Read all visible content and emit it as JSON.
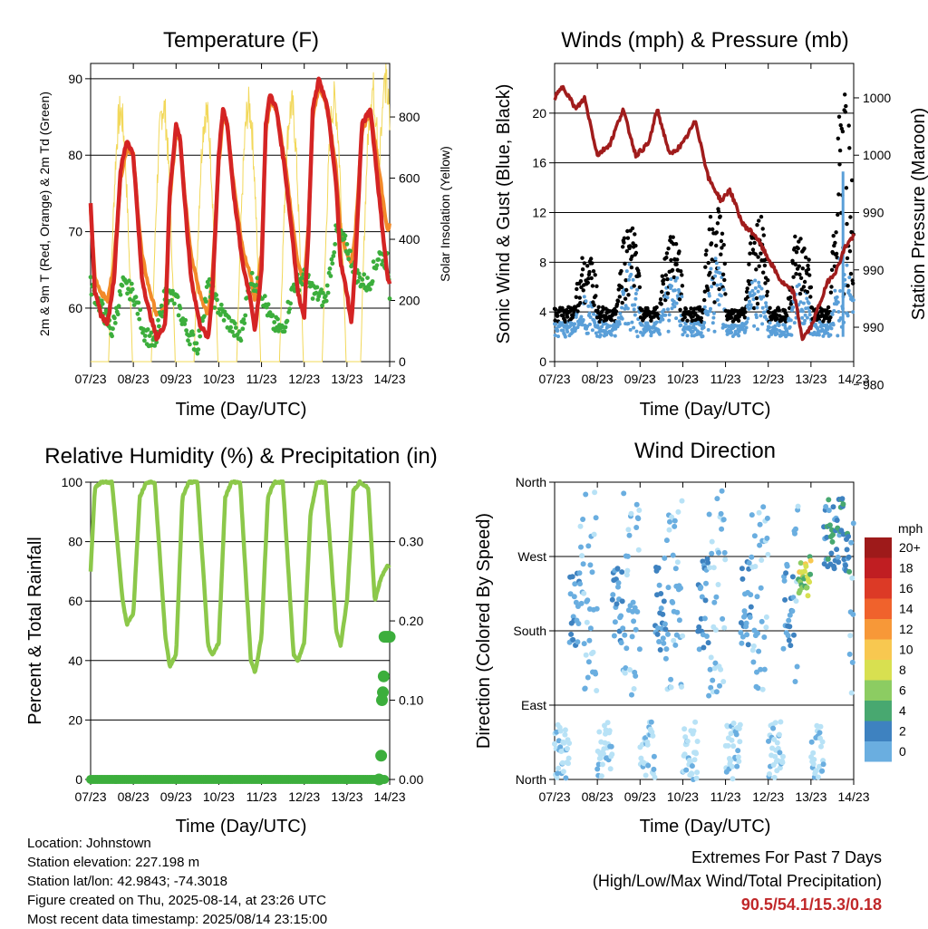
{
  "colors": {
    "temp2m": "#d42424",
    "temp9m": "#f28a2a",
    "dew": "#3cae3c",
    "solar": "#f2d85a",
    "wind": "#5a9fd8",
    "gust": "#000000",
    "pressure": "#a01c1c",
    "rh": "#8cc84a",
    "precip": "#3cae3c"
  },
  "x_ticks": [
    "07/23",
    "08/23",
    "09/23",
    "10/23",
    "11/23",
    "12/23",
    "13/23",
    "14/23"
  ],
  "chart_data": [
    {
      "type": "line",
      "title": "Temperature (F)",
      "xlabel": "Time (Day/UTC)",
      "ylabel": "2m & 9m T (Red, Orange) & 2m Td (Green)",
      "y2label": "Solar Insolation (Yellow)",
      "ylim": [
        53,
        92
      ],
      "y2lim": [
        0,
        975
      ],
      "y_ticks": [
        "60",
        "70",
        "80",
        "90"
      ],
      "y2_ticks": [
        "0",
        "200",
        "400",
        "600",
        "800"
      ],
      "grid": true,
      "series": [
        {
          "name": "2m T",
          "axis": "left",
          "x_days": [
            0,
            0.1,
            0.25,
            0.4,
            0.55,
            0.7,
            0.85,
            1.0,
            1.1,
            1.2,
            1.35,
            1.55,
            1.75,
            1.85,
            2.0,
            2.1,
            2.2,
            2.35,
            2.55,
            2.75,
            2.85,
            3.0,
            3.1,
            3.2,
            3.35,
            3.55,
            3.75,
            3.85,
            4.0,
            4.1,
            4.2,
            4.35,
            4.55,
            4.75,
            4.85,
            5.0,
            5.1,
            5.2,
            5.35,
            5.55,
            5.75,
            5.85,
            6.0,
            6.1,
            6.2,
            6.35,
            6.55,
            6.8,
            6.95,
            7.0
          ],
          "y": [
            74,
            62,
            59,
            58,
            64,
            78,
            82,
            80,
            72,
            64,
            60,
            56,
            58,
            75,
            84,
            82,
            74,
            64,
            58,
            56,
            62,
            80,
            86,
            84,
            75,
            66,
            61,
            57,
            65,
            84,
            88,
            86,
            78,
            68,
            62,
            59,
            70,
            86,
            90,
            86,
            76,
            66,
            62,
            58,
            66,
            84,
            86,
            72,
            64,
            63
          ]
        },
        {
          "name": "9m T",
          "axis": "left",
          "x_days": [
            0,
            0.1,
            0.25,
            0.4,
            0.55,
            0.7,
            0.85,
            1.0,
            1.1,
            1.2,
            1.35,
            1.55,
            1.75,
            1.85,
            2.0,
            2.1,
            2.2,
            2.35,
            2.55,
            2.75,
            2.85,
            3.0,
            3.1,
            3.2,
            3.35,
            3.55,
            3.75,
            3.85,
            4.0,
            4.1,
            4.2,
            4.35,
            4.55,
            4.75,
            4.85,
            5.0,
            5.1,
            5.2,
            5.35,
            5.55,
            5.75,
            5.85,
            6.0,
            6.1,
            6.2,
            6.35,
            6.55,
            6.8,
            6.95,
            7.0
          ],
          "y": [
            73,
            64,
            62,
            61,
            66,
            77,
            81,
            80,
            73,
            67,
            63,
            59,
            60,
            74,
            83,
            82,
            75,
            67,
            62,
            59,
            64,
            79,
            85,
            84,
            76,
            68,
            64,
            61,
            67,
            83,
            87,
            86,
            79,
            70,
            66,
            63,
            71,
            85,
            89,
            86,
            78,
            70,
            67,
            66,
            70,
            83,
            86,
            76,
            70,
            71
          ]
        },
        {
          "name": "2m Td",
          "axis": "left",
          "x_days": [
            0,
            0.25,
            0.5,
            0.75,
            1.0,
            1.25,
            1.5,
            1.75,
            2.0,
            2.25,
            2.5,
            2.75,
            3.0,
            3.25,
            3.5,
            3.75,
            4.0,
            4.25,
            4.5,
            4.75,
            5.0,
            5.25,
            5.5,
            5.75,
            6.0,
            6.25,
            6.5,
            6.75,
            6.95,
            7.0
          ],
          "y": [
            63,
            60,
            57,
            63,
            62,
            57,
            55,
            62,
            61,
            57,
            55,
            63,
            60,
            58,
            56,
            64,
            62,
            58,
            57,
            63,
            64,
            62,
            61,
            70,
            68,
            64,
            63,
            67,
            66,
            62
          ]
        },
        {
          "name": "Solar",
          "axis": "right",
          "peak_days": [
            0.7,
            1.7,
            2.7,
            3.7,
            4.7,
            5.7,
            6.6,
            6.9
          ],
          "peak_values": [
            880,
            900,
            880,
            900,
            900,
            920,
            960,
            980
          ]
        }
      ]
    },
    {
      "type": "scatter",
      "title": "Winds (mph) & Pressure (mb)",
      "xlabel": "Time (Day/UTC)",
      "ylabel": "Sonic Wind & Gust (Blue, Black)",
      "y2label": "Station Pressure (Maroon)",
      "ylim": [
        0,
        24
      ],
      "y2lim": [
        977,
        1003
      ],
      "y_ticks": [
        "0",
        "4",
        "8",
        "12",
        "16",
        "20"
      ],
      "y2_ticks": [
        "980",
        "990",
        "990",
        "990",
        "1000",
        "1000"
      ],
      "grid": true,
      "series": [
        {
          "name": "Pressure",
          "axis": "right",
          "x_days": [
            0,
            0.2,
            0.5,
            0.7,
            1.0,
            1.3,
            1.6,
            1.9,
            2.2,
            2.4,
            2.7,
            3.0,
            3.3,
            3.6,
            3.9,
            4.1,
            4.4,
            4.7,
            5.0,
            5.3,
            5.6,
            5.8,
            6.0,
            6.2,
            6.4,
            6.6,
            6.8,
            7.0
          ],
          "y": [
            1000,
            1001,
            999,
            1000,
            995,
            996,
            999,
            995,
            996,
            999,
            995,
            996,
            998,
            993,
            991,
            992,
            989,
            988,
            986,
            984,
            983,
            979,
            980,
            982,
            984,
            985,
            987,
            988
          ]
        },
        {
          "name": "Wind",
          "axis": "left",
          "daily_peak": [
            4,
            6,
            6,
            7,
            6,
            5,
            7,
            7
          ],
          "max": 15.3
        },
        {
          "name": "Gust",
          "axis": "left",
          "daily_peak": [
            8,
            10,
            9,
            12,
            11,
            10,
            21,
            20
          ]
        }
      ]
    },
    {
      "type": "line",
      "title": "Relative Humidity (%) & Precipitation (in)",
      "xlabel": "Time (Day/UTC)",
      "ylabel": "Percent & Total Rainfall",
      "ylim": [
        0,
        100
      ],
      "y2lim": [
        0,
        0.375
      ],
      "y_ticks": [
        "0",
        "20",
        "40",
        "60",
        "80",
        "100"
      ],
      "y2_ticks": [
        "0.00",
        "0.10",
        "0.20",
        "0.30"
      ],
      "grid": true,
      "series": [
        {
          "name": "RH",
          "axis": "left",
          "x_days": [
            0,
            0.1,
            0.25,
            0.5,
            0.75,
            0.85,
            1.0,
            1.15,
            1.3,
            1.5,
            1.75,
            1.85,
            2.0,
            2.15,
            2.3,
            2.5,
            2.75,
            2.85,
            3.0,
            3.15,
            3.3,
            3.5,
            3.75,
            3.85,
            4.0,
            4.15,
            4.3,
            4.5,
            4.75,
            4.85,
            5.0,
            5.15,
            5.3,
            5.5,
            5.75,
            5.85,
            6.0,
            6.15,
            6.3,
            6.5,
            6.65,
            6.8,
            6.95,
            7.0
          ],
          "y": [
            70,
            98,
            100,
            100,
            60,
            52,
            56,
            95,
            100,
            100,
            48,
            38,
            42,
            95,
            100,
            100,
            45,
            42,
            46,
            95,
            100,
            100,
            40,
            36,
            48,
            95,
            100,
            100,
            42,
            40,
            46,
            90,
            100,
            100,
            50,
            45,
            60,
            97,
            100,
            98,
            60,
            68,
            72,
            72
          ]
        },
        {
          "name": "Precip",
          "axis": "right",
          "x_days": [
            0,
            1,
            2,
            3,
            4,
            5,
            6,
            6.75,
            6.8,
            6.82,
            6.84,
            6.86,
            6.88,
            6.92,
            6.96,
            7.0
          ],
          "y": [
            0,
            0,
            0,
            0,
            0,
            0,
            0,
            0,
            0.03,
            0.1,
            0.11,
            0.13,
            0.18,
            0.18,
            0.18,
            0.18
          ]
        }
      ]
    },
    {
      "type": "scatter",
      "title": "Wind Direction",
      "xlabel": "Time (Day/UTC)",
      "ylabel": "Direction (Colored By Speed)",
      "ylim": [
        0,
        360
      ],
      "y_ticks": [
        "North",
        "East",
        "South",
        "West",
        "North"
      ],
      "legend_title": "mph",
      "legend_labels": [
        "20+",
        "18",
        "16",
        "14",
        "12",
        "10",
        "8",
        "6",
        "4",
        "2",
        "0"
      ],
      "legend_colors": [
        "#9e1a1a",
        "#c01e22",
        "#dc3a26",
        "#f0622c",
        "#f79838",
        "#f8c850",
        "#d8e050",
        "#8ccc62",
        "#48a870",
        "#3e82c0",
        "#6aaee0",
        "#b8e2f6"
      ]
    }
  ],
  "info": {
    "location": "Location: Johnstown",
    "elevation": "Station elevation: 227.198 m",
    "latlon": "Station lat/lon: 42.9843; -74.3018",
    "created": "Figure created on Thu, 2025-08-14, at 23:26 UTC",
    "recent": "Most recent data timestamp: 2025/08/14 23:15:00"
  },
  "extremes": {
    "line1": "Extremes For Past 7 Days",
    "line2": "(High/Low/Max Wind/Total Precipitation)",
    "values": "90.5/54.1/15.3/0.18"
  }
}
